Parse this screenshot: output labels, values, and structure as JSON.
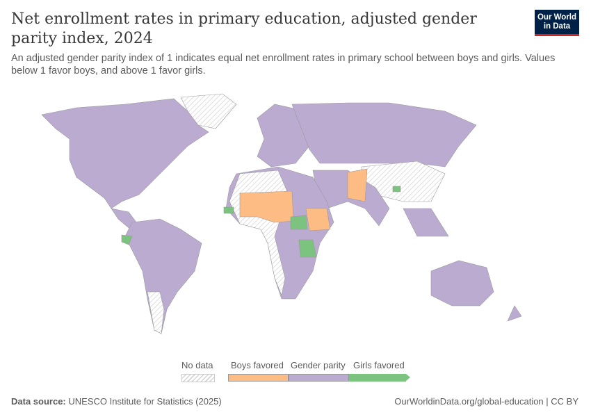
{
  "header": {
    "title": "Net enrollment rates in primary education, adjusted gender parity index, 2024",
    "subtitle": "An adjusted gender parity index of 1 indicates equal net enrollment rates in primary school between boys and girls. Values below 1 favor boys, and above 1 favor girls.",
    "logo": "Our World in Data"
  },
  "chart_data": {
    "type": "choropleth-map",
    "year": "2024",
    "legend": {
      "no_data": "No data",
      "categories": [
        {
          "label": "Boys favored",
          "color": "#fcbc84"
        },
        {
          "label": "Gender parity",
          "color": "#bcabd1"
        },
        {
          "label": "Girls favored",
          "color": "#7cc37f"
        }
      ]
    },
    "colors": {
      "no_data_hatch": "#d9d9d9",
      "border": "#8a8a8a"
    }
  },
  "footer": {
    "source_label": "Data source:",
    "source": "UNESCO Institute for Statistics (2025)",
    "url": "OurWorldinData.org/global-education | CC BY"
  }
}
